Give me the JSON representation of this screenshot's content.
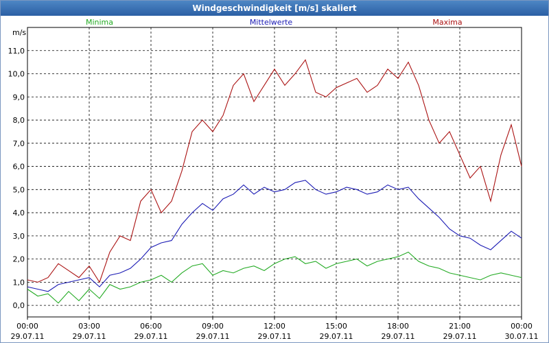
{
  "window": {
    "title": "Windgeschwindigkeit [m/s] skaliert"
  },
  "chart_data": {
    "type": "line",
    "title": "Windgeschwindigkeit [m/s] skaliert",
    "ylabel": "m/s",
    "xlabel": "",
    "ylim": [
      -0.5,
      12.0
    ],
    "xlim": [
      0,
      24
    ],
    "grid": true,
    "legend_position": "top",
    "y_ticks": [
      "0,0",
      "1,0",
      "2,0",
      "3,0",
      "4,0",
      "5,0",
      "6,0",
      "7,0",
      "8,0",
      "9,0",
      "10,0",
      "11,0"
    ],
    "x_ticks": [
      {
        "time": "00:00",
        "date": "29.07.11"
      },
      {
        "time": "03:00",
        "date": "29.07.11"
      },
      {
        "time": "06:00",
        "date": "29.07.11"
      },
      {
        "time": "09:00",
        "date": "29.07.11"
      },
      {
        "time": "12:00",
        "date": "29.07.11"
      },
      {
        "time": "15:00",
        "date": "29.07.11"
      },
      {
        "time": "18:00",
        "date": "29.07.11"
      },
      {
        "time": "21:00",
        "date": "29.07.11"
      },
      {
        "time": "00:00",
        "date": "30.07.11"
      }
    ],
    "x": [
      0,
      0.5,
      1,
      1.5,
      2,
      2.5,
      3,
      3.5,
      4,
      4.5,
      5,
      5.5,
      6,
      6.5,
      7,
      7.5,
      8,
      8.5,
      9,
      9.5,
      10,
      10.5,
      11,
      11.5,
      12,
      12.5,
      13,
      13.5,
      14,
      14.5,
      15,
      15.5,
      16,
      16.5,
      17,
      17.5,
      18,
      18.5,
      19,
      19.5,
      20,
      20.5,
      21,
      21.5,
      22,
      22.5,
      23,
      23.5,
      24
    ],
    "series": [
      {
        "name": "Minima",
        "color": "#22aa22",
        "values": [
          0.7,
          0.4,
          0.5,
          0.1,
          0.6,
          0.2,
          0.7,
          0.3,
          0.9,
          0.7,
          0.8,
          1.0,
          1.1,
          1.3,
          1.0,
          1.4,
          1.7,
          1.8,
          1.3,
          1.5,
          1.4,
          1.6,
          1.7,
          1.5,
          1.8,
          2.0,
          2.1,
          1.8,
          1.9,
          1.6,
          1.8,
          1.9,
          2.0,
          1.7,
          1.9,
          2.0,
          2.1,
          2.3,
          1.9,
          1.7,
          1.6,
          1.4,
          1.3,
          1.2,
          1.1,
          1.3,
          1.4,
          1.3,
          1.2
        ]
      },
      {
        "name": "Mittelwerte",
        "color": "#1a1ab4",
        "values": [
          0.8,
          0.7,
          0.6,
          0.9,
          1.0,
          1.1,
          1.2,
          0.8,
          1.3,
          1.4,
          1.6,
          2.0,
          2.5,
          2.7,
          2.8,
          3.5,
          4.0,
          4.4,
          4.1,
          4.6,
          4.8,
          5.2,
          4.8,
          5.1,
          4.9,
          5.0,
          5.3,
          5.4,
          5.0,
          4.8,
          4.9,
          5.1,
          5.0,
          4.8,
          4.9,
          5.2,
          5.0,
          5.1,
          4.6,
          4.2,
          3.8,
          3.3,
          3.0,
          2.9,
          2.6,
          2.4,
          2.8,
          3.2,
          2.9
        ]
      },
      {
        "name": "Maxima",
        "color": "#aa1111",
        "values": [
          1.1,
          1.0,
          1.2,
          1.8,
          1.5,
          1.2,
          1.7,
          1.0,
          2.3,
          3.0,
          2.8,
          4.5,
          5.0,
          4.0,
          4.5,
          5.8,
          7.5,
          8.0,
          7.5,
          8.2,
          9.5,
          10.0,
          8.8,
          9.5,
          10.2,
          9.5,
          10.0,
          10.6,
          9.2,
          9.0,
          9.4,
          9.6,
          9.8,
          9.2,
          9.5,
          10.2,
          9.8,
          10.5,
          9.5,
          8.0,
          7.0,
          7.5,
          6.5,
          5.5,
          6.0,
          4.5,
          6.5,
          7.8,
          6.0
        ]
      }
    ]
  }
}
